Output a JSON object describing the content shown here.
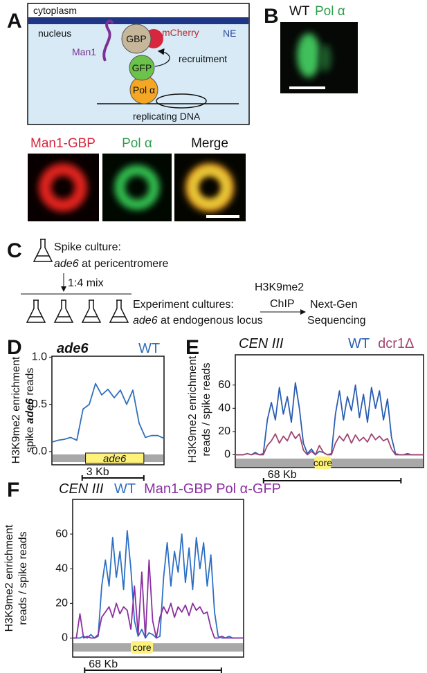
{
  "panel_labels": [
    "A",
    "B",
    "C",
    "D",
    "E",
    "F"
  ],
  "diagram": {
    "cytoplasm": "cytoplasm",
    "nucleus": "nucleus",
    "ne": "NE",
    "man1": "Man1",
    "gbp": "GBP",
    "mcherry": "mCherry",
    "recruitment": "recruitment",
    "gfp": "GFP",
    "pol": "Pol α",
    "dna": "replicating DNA"
  },
  "panel_b": {
    "wt": "WT",
    "pol": "Pol α"
  },
  "micrographs": [
    "Man1-GBP",
    "Pol α",
    "Merge"
  ],
  "panel_c": {
    "spike_1": "Spike culture:",
    "spike_gene": "ade6",
    "spike_2": " at pericentromere",
    "mix": "1:4 mix",
    "exp_1": "Experiment cultures:",
    "exp_gene": "ade6",
    "exp_2": " at endogenous locus",
    "antibody": "H3K9me2",
    "chip": "ChIP",
    "seq_1": "Next-Gen",
    "seq_2": "Sequencing"
  },
  "chart_data": [
    {
      "type": "line",
      "title": "ade6",
      "ylabel": "H3K9me2 enrichment",
      "ylabel2": [
        "spike ",
        "ade6",
        " reads"
      ],
      "ylim": [
        -0.14,
        1.01
      ],
      "yticks": [
        {
          "value": 0,
          "label": "0.0"
        },
        0.5,
        {
          "value": 1,
          "label": "1.0"
        }
      ],
      "gene_label": "ade6",
      "scale_label": "3 Kb",
      "series": [
        {
          "name": "WT",
          "color": "#2f6fb8",
          "values": [
            0.1,
            0.12,
            0.13,
            0.15,
            0.12,
            0.45,
            0.5,
            0.72,
            0.6,
            0.66,
            0.57,
            0.65,
            0.5,
            0.65,
            0.3,
            0.15,
            0.17,
            0.17,
            0.14
          ]
        }
      ]
    },
    {
      "type": "line",
      "title": "CEN III",
      "ylabel": "H3K9me2 enrichment",
      "ylabel2": [
        "reads / spike reads"
      ],
      "ylim": [
        -11,
        86
      ],
      "yticks": [
        0,
        20,
        40,
        60
      ],
      "core_label": "core",
      "scale_label": "68 Kb",
      "series": [
        {
          "name": "WT",
          "color": "#2a5db0",
          "values": [
            0,
            0,
            0,
            1,
            0,
            2,
            0,
            1,
            30,
            45,
            30,
            58,
            35,
            50,
            28,
            62,
            40,
            10,
            1,
            5,
            0,
            3,
            2,
            0,
            1,
            35,
            55,
            30,
            50,
            38,
            60,
            32,
            52,
            28,
            58,
            40,
            55,
            30,
            48,
            15,
            1,
            0,
            0,
            1,
            0,
            0,
            0,
            0
          ]
        },
        {
          "name": "dcr1Δ",
          "color": "#a1456f",
          "values": [
            0,
            0,
            0,
            1,
            0,
            1,
            0,
            0,
            8,
            12,
            18,
            10,
            16,
            12,
            20,
            14,
            18,
            4,
            0,
            3,
            0,
            8,
            2,
            0,
            0,
            10,
            16,
            12,
            18,
            10,
            17,
            12,
            15,
            11,
            18,
            13,
            16,
            12,
            14,
            5,
            0,
            0,
            0,
            0,
            0,
            0,
            0,
            0
          ]
        }
      ]
    },
    {
      "type": "line",
      "title": "CEN III",
      "ylabel": "H3K9me2 enrichment",
      "ylabel2": [
        "reads / spike reads"
      ],
      "ylim": [
        -11,
        80
      ],
      "yticks": [
        0,
        20,
        40,
        60
      ],
      "core_label": "core",
      "scale_label": "68 Kb",
      "series": [
        {
          "name": "WT",
          "color": "#2d6fc4",
          "values": [
            0,
            0,
            0,
            1,
            0,
            2,
            0,
            1,
            30,
            45,
            30,
            58,
            35,
            50,
            28,
            62,
            40,
            10,
            1,
            5,
            0,
            3,
            2,
            0,
            1,
            35,
            55,
            30,
            50,
            38,
            60,
            32,
            52,
            28,
            58,
            40,
            55,
            30,
            48,
            15,
            1,
            0,
            0,
            1,
            0,
            0,
            0,
            0
          ]
        },
        {
          "name": "Man1-GBP Pol α-GFP",
          "color": "#8b2fa0",
          "values": [
            0,
            0,
            14,
            0,
            1,
            0,
            0,
            2,
            12,
            15,
            18,
            12,
            20,
            14,
            18,
            16,
            5,
            30,
            2,
            38,
            0,
            45,
            10,
            0,
            12,
            18,
            14,
            20,
            12,
            18,
            15,
            19,
            13,
            20,
            16,
            18,
            14,
            15,
            6,
            0,
            0,
            1,
            0,
            0,
            0,
            0,
            0,
            0
          ]
        }
      ]
    }
  ]
}
